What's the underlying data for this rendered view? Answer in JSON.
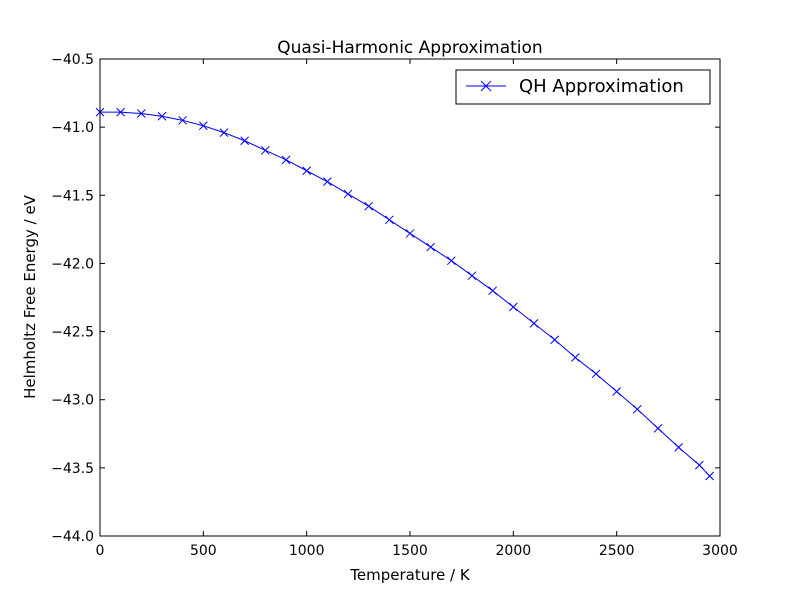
{
  "chart_data": {
    "type": "line",
    "title": "Quasi-Harmonic Approximation",
    "xlabel": "Temperature / K",
    "ylabel": "Helmholtz Free Energy / eV",
    "xlim": [
      0,
      3000
    ],
    "ylim": [
      -44.0,
      -40.5
    ],
    "xticks": [
      0,
      500,
      1000,
      1500,
      2000,
      2500,
      3000
    ],
    "yticks": [
      -40.5,
      -41.0,
      -41.5,
      -42.0,
      -42.5,
      -43.0,
      -43.5,
      -44.0
    ],
    "xtick_labels": [
      "0",
      "500",
      "1000",
      "1500",
      "2000",
      "2500",
      "3000"
    ],
    "ytick_labels": [
      "−40.5",
      "−41.0",
      "−41.5",
      "−42.0",
      "−42.5",
      "−43.0",
      "−43.5",
      "−44.0"
    ],
    "grid": false,
    "legend_position": "top-right",
    "series": [
      {
        "name": "QH Approximation",
        "color": "#0000ff",
        "marker": "x",
        "x": [
          0,
          100,
          200,
          300,
          400,
          500,
          600,
          700,
          800,
          900,
          1000,
          1100,
          1200,
          1300,
          1400,
          1500,
          1600,
          1700,
          1800,
          1900,
          2000,
          2100,
          2200,
          2300,
          2400,
          2500,
          2600,
          2700,
          2800,
          2900,
          2950
        ],
        "y": [
          -40.89,
          -40.89,
          -40.9,
          -40.92,
          -40.95,
          -40.99,
          -41.04,
          -41.1,
          -41.17,
          -41.24,
          -41.32,
          -41.4,
          -41.49,
          -41.58,
          -41.68,
          -41.78,
          -41.88,
          -41.98,
          -42.09,
          -42.2,
          -42.32,
          -42.44,
          -42.56,
          -42.69,
          -42.81,
          -42.94,
          -43.07,
          -43.21,
          -43.35,
          -43.48,
          -43.56
        ]
      }
    ]
  }
}
